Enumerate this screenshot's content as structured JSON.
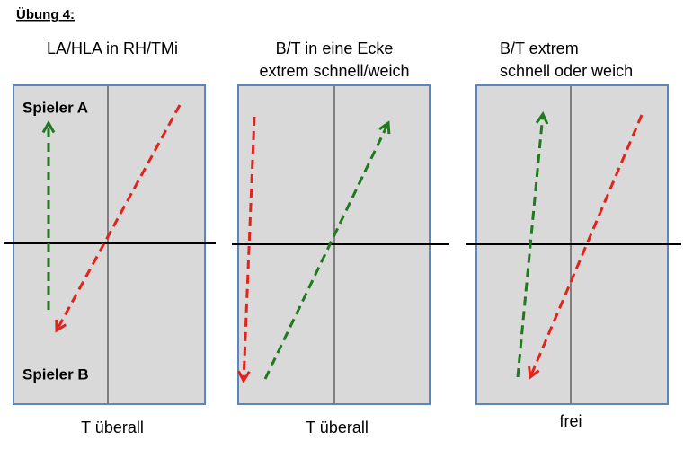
{
  "header": {
    "title": "Übung 4:"
  },
  "panels": [
    {
      "title_lines": [
        "LA/HLA in RH/TMi"
      ],
      "caption": "T überall",
      "labels": [
        "Spieler A",
        "Spieler B"
      ]
    },
    {
      "title_lines": [
        "B/T in eine Ecke",
        "extrem schnell/weich"
      ],
      "caption": "T überall"
    },
    {
      "title_lines": [
        "B/T extrem",
        "schnell oder weich"
      ],
      "caption": "frei"
    }
  ]
}
